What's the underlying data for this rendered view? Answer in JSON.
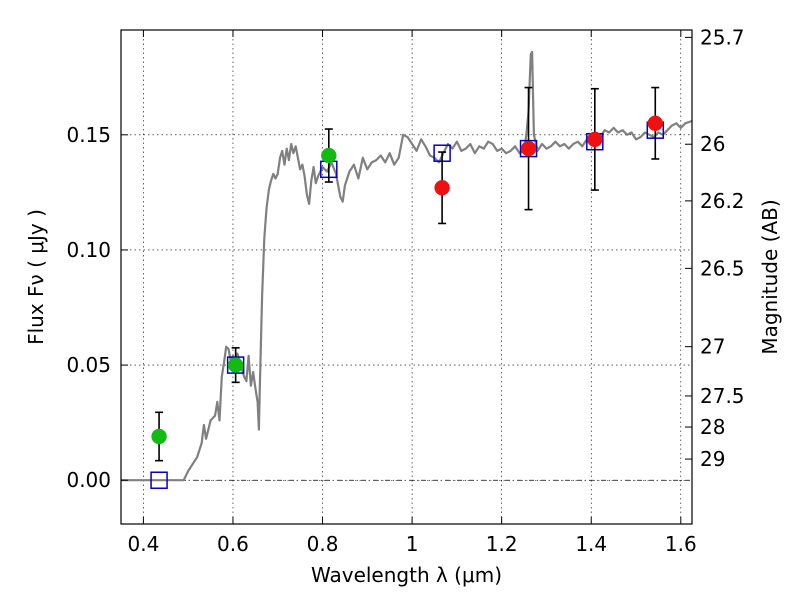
{
  "chart_data": {
    "type": "scatter",
    "xlabel": "Wavelength  λ (μm)",
    "ylabel": "Flux  Fν  ( μJy )",
    "ylabel_right": "Magnitude (AB)",
    "xlim": [
      0.35,
      1.625
    ],
    "ylim": [
      -0.019,
      0.1955
    ],
    "grid": true,
    "x_ticks": [
      {
        "value": 0.4,
        "label": "0.4"
      },
      {
        "value": 0.6,
        "label": "0.6"
      },
      {
        "value": 0.8,
        "label": "0.8"
      },
      {
        "value": 1.0,
        "label": "1"
      },
      {
        "value": 1.2,
        "label": "1.2"
      },
      {
        "value": 1.4,
        "label": "1.4"
      },
      {
        "value": 1.6,
        "label": "1.6"
      }
    ],
    "y_ticks": [
      {
        "value": 0.0,
        "label": "0.00"
      },
      {
        "value": 0.05,
        "label": "0.05"
      },
      {
        "value": 0.1,
        "label": "0.10"
      },
      {
        "value": 0.15,
        "label": "0.15"
      }
    ],
    "magnitude_ticks": [
      {
        "flux": 0.1923,
        "label": "25.7"
      },
      {
        "flux": 0.1459,
        "label": "26"
      },
      {
        "flux": 0.1213,
        "label": "26.2"
      },
      {
        "flux": 0.092,
        "label": "26.5"
      },
      {
        "flux": 0.058,
        "label": "27"
      },
      {
        "flux": 0.0366,
        "label": "27.5"
      },
      {
        "flux": 0.0231,
        "label": "28"
      },
      {
        "flux": 0.0092,
        "label": "29"
      }
    ],
    "zero_line": 0.0,
    "series": [
      {
        "role": "model-spectrum",
        "color": "#808080",
        "points": [
          [
            0.35,
            0.0
          ],
          [
            0.49,
            0.0
          ],
          [
            0.5,
            0.004
          ],
          [
            0.52,
            0.01
          ],
          [
            0.53,
            0.016
          ],
          [
            0.535,
            0.024
          ],
          [
            0.54,
            0.018
          ],
          [
            0.55,
            0.026
          ],
          [
            0.56,
            0.028
          ],
          [
            0.565,
            0.034
          ],
          [
            0.57,
            0.026
          ],
          [
            0.575,
            0.045
          ],
          [
            0.58,
            0.051
          ],
          [
            0.585,
            0.058
          ],
          [
            0.59,
            0.057
          ],
          [
            0.595,
            0.052
          ],
          [
            0.6,
            0.054
          ],
          [
            0.605,
            0.052
          ],
          [
            0.61,
            0.055
          ],
          [
            0.62,
            0.048
          ],
          [
            0.625,
            0.045
          ],
          [
            0.63,
            0.043
          ],
          [
            0.635,
            0.054
          ],
          [
            0.64,
            0.041
          ],
          [
            0.645,
            0.047
          ],
          [
            0.65,
            0.04
          ],
          [
            0.655,
            0.034
          ],
          [
            0.658,
            0.022
          ],
          [
            0.66,
            0.04
          ],
          [
            0.665,
            0.08
          ],
          [
            0.67,
            0.105
          ],
          [
            0.675,
            0.118
          ],
          [
            0.68,
            0.126
          ],
          [
            0.685,
            0.13
          ],
          [
            0.69,
            0.133
          ],
          [
            0.695,
            0.131
          ],
          [
            0.7,
            0.133
          ],
          [
            0.705,
            0.14
          ],
          [
            0.71,
            0.143
          ],
          [
            0.715,
            0.137
          ],
          [
            0.72,
            0.144
          ],
          [
            0.725,
            0.139
          ],
          [
            0.73,
            0.146
          ],
          [
            0.735,
            0.142
          ],
          [
            0.74,
            0.145
          ],
          [
            0.745,
            0.14
          ],
          [
            0.75,
            0.135
          ],
          [
            0.755,
            0.137
          ],
          [
            0.76,
            0.132
          ],
          [
            0.765,
            0.124
          ],
          [
            0.77,
            0.12
          ],
          [
            0.775,
            0.13
          ],
          [
            0.78,
            0.136
          ],
          [
            0.785,
            0.129
          ],
          [
            0.79,
            0.132
          ],
          [
            0.795,
            0.134
          ],
          [
            0.8,
            0.136
          ],
          [
            0.81,
            0.134
          ],
          [
            0.82,
            0.138
          ],
          [
            0.83,
            0.133
          ],
          [
            0.84,
            0.123
          ],
          [
            0.845,
            0.121
          ],
          [
            0.85,
            0.128
          ],
          [
            0.86,
            0.134
          ],
          [
            0.87,
            0.137
          ],
          [
            0.88,
            0.131
          ],
          [
            0.89,
            0.14
          ],
          [
            0.9,
            0.135
          ],
          [
            0.91,
            0.138
          ],
          [
            0.92,
            0.139
          ],
          [
            0.93,
            0.141
          ],
          [
            0.94,
            0.138
          ],
          [
            0.95,
            0.142
          ],
          [
            0.96,
            0.137
          ],
          [
            0.97,
            0.14
          ],
          [
            0.98,
            0.15
          ],
          [
            0.99,
            0.149
          ],
          [
            1.0,
            0.146
          ],
          [
            1.01,
            0.143
          ],
          [
            1.02,
            0.148
          ],
          [
            1.03,
            0.145
          ],
          [
            1.04,
            0.141
          ],
          [
            1.05,
            0.14
          ],
          [
            1.06,
            0.138
          ],
          [
            1.07,
            0.142
          ],
          [
            1.08,
            0.146
          ],
          [
            1.09,
            0.144
          ],
          [
            1.1,
            0.147
          ],
          [
            1.11,
            0.143
          ],
          [
            1.12,
            0.144
          ],
          [
            1.13,
            0.146
          ],
          [
            1.14,
            0.142
          ],
          [
            1.15,
            0.145
          ],
          [
            1.16,
            0.144
          ],
          [
            1.17,
            0.147
          ],
          [
            1.18,
            0.146
          ],
          [
            1.19,
            0.143
          ],
          [
            1.2,
            0.144
          ],
          [
            1.21,
            0.142
          ],
          [
            1.22,
            0.143
          ],
          [
            1.23,
            0.145
          ],
          [
            1.24,
            0.142
          ],
          [
            1.25,
            0.143
          ],
          [
            1.255,
            0.15
          ],
          [
            1.26,
            0.16
          ],
          [
            1.265,
            0.185
          ],
          [
            1.268,
            0.186
          ],
          [
            1.272,
            0.15
          ],
          [
            1.28,
            0.143
          ],
          [
            1.29,
            0.146
          ],
          [
            1.3,
            0.144
          ],
          [
            1.31,
            0.145
          ],
          [
            1.32,
            0.147
          ],
          [
            1.33,
            0.145
          ],
          [
            1.34,
            0.146
          ],
          [
            1.35,
            0.144
          ],
          [
            1.36,
            0.146
          ],
          [
            1.37,
            0.147
          ],
          [
            1.38,
            0.145
          ],
          [
            1.39,
            0.148
          ],
          [
            1.4,
            0.146
          ],
          [
            1.41,
            0.15
          ],
          [
            1.42,
            0.149
          ],
          [
            1.43,
            0.152
          ],
          [
            1.44,
            0.151
          ],
          [
            1.45,
            0.153
          ],
          [
            1.46,
            0.151
          ],
          [
            1.47,
            0.152
          ],
          [
            1.48,
            0.15
          ],
          [
            1.49,
            0.151
          ],
          [
            1.5,
            0.148
          ],
          [
            1.51,
            0.149
          ],
          [
            1.52,
            0.151
          ],
          [
            1.53,
            0.15
          ],
          [
            1.54,
            0.149
          ],
          [
            1.55,
            0.151
          ],
          [
            1.56,
            0.15
          ],
          [
            1.57,
            0.152
          ],
          [
            1.58,
            0.154
          ],
          [
            1.59,
            0.155
          ],
          [
            1.6,
            0.153
          ],
          [
            1.61,
            0.155
          ],
          [
            1.625,
            0.156
          ]
        ]
      },
      {
        "role": "model-band-flux",
        "color": "#0000cc",
        "marker": "square",
        "points": [
          {
            "x": 0.435,
            "y": 0.0
          },
          {
            "x": 0.606,
            "y": 0.05
          },
          {
            "x": 0.814,
            "y": 0.135
          },
          {
            "x": 1.067,
            "y": 0.142
          },
          {
            "x": 1.26,
            "y": 0.144
          },
          {
            "x": 1.408,
            "y": 0.147
          },
          {
            "x": 1.543,
            "y": 0.152
          }
        ]
      },
      {
        "role": "observed-optical",
        "color": "#11bb11",
        "marker": "circle",
        "points": [
          {
            "x": 0.435,
            "y": 0.019,
            "yerr": 0.0105
          },
          {
            "x": 0.606,
            "y": 0.05,
            "yerr": 0.0075
          },
          {
            "x": 0.814,
            "y": 0.141,
            "yerr": 0.0115
          }
        ]
      },
      {
        "role": "observed-nir",
        "color": "#ee1111",
        "marker": "circle",
        "points": [
          {
            "x": 1.067,
            "y": 0.127,
            "yerr": 0.0155
          },
          {
            "x": 1.26,
            "y": 0.144,
            "yerr": 0.0265
          },
          {
            "x": 1.408,
            "y": 0.148,
            "yerr": 0.022
          },
          {
            "x": 1.543,
            "y": 0.155,
            "yerr": 0.0155
          }
        ]
      }
    ]
  }
}
